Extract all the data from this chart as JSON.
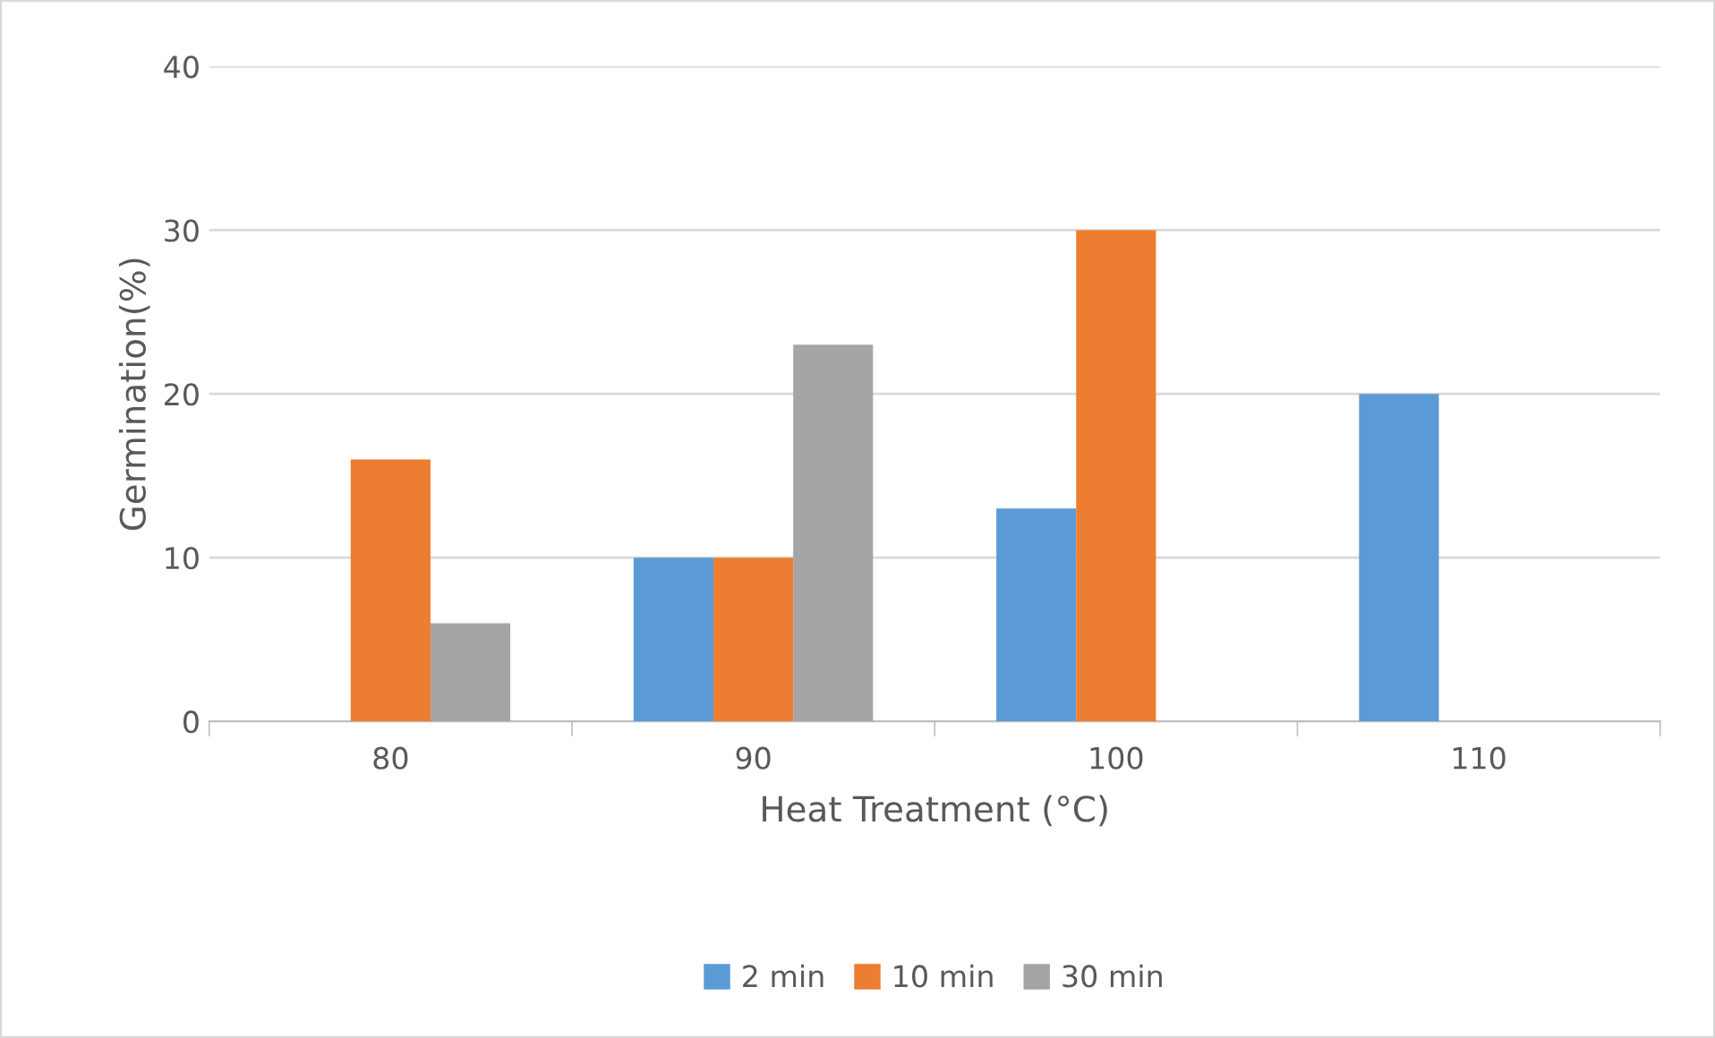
{
  "chart_data": {
    "type": "bar",
    "xlabel": "Heat Treatment (°C)",
    "ylabel": "Germination(%)",
    "categories": [
      "80",
      "90",
      "100",
      "110"
    ],
    "series": [
      {
        "name": "2 min",
        "color": "#5b9bd5",
        "values": [
          0,
          10,
          13,
          20
        ]
      },
      {
        "name": "10 min",
        "color": "#ed7d31",
        "values": [
          16,
          10,
          30,
          0
        ]
      },
      {
        "name": "30 min",
        "color": "#a5a5a5",
        "values": [
          6,
          23,
          0,
          0
        ]
      }
    ],
    "ylim": [
      0,
      40
    ],
    "yticks": [
      0,
      10,
      20,
      30,
      40
    ],
    "grid": "y",
    "legend": "bottom"
  }
}
